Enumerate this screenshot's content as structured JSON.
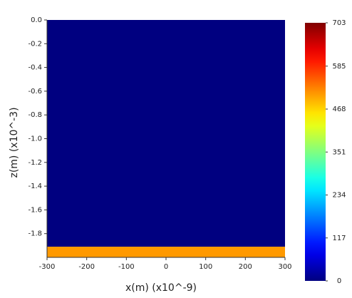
{
  "chart_data": {
    "type": "heatmap",
    "xlabel": "x(m) (x10^-9)",
    "ylabel": "z(m) (x10^-3)",
    "xlim": [
      -300,
      300
    ],
    "xticks": [
      -300,
      -200,
      -100,
      0,
      100,
      200,
      300
    ],
    "ylim": [
      -2,
      0
    ],
    "yticks": [
      {
        "value": 0,
        "label": "0.0"
      },
      -0.2,
      -0.4,
      -0.6,
      -0.8,
      {
        "value": -1,
        "label": "-1.0"
      },
      -1.2,
      -1.4,
      -1.6,
      -1.8
    ],
    "ybins": [
      0,
      -1.91,
      -2
    ],
    "values": [
      0,
      510
    ],
    "colormap": "jet",
    "colorbar": {
      "lim": [
        0,
        703
      ],
      "ticks": [
        0,
        117,
        234,
        351,
        468,
        585,
        703
      ]
    }
  }
}
